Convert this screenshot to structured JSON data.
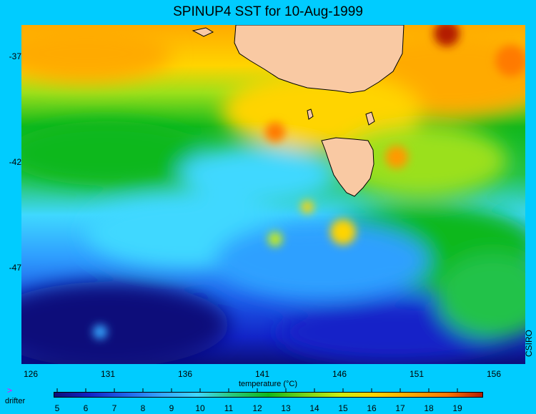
{
  "title": "SPINUP4 SST for 10-Aug-1999",
  "map": {
    "longitude_ticks": [
      "126",
      "131",
      "136",
      "141",
      "146",
      "151",
      "156"
    ],
    "latitude_ticks": [
      "-37",
      "-42",
      "-47"
    ],
    "credit": "CSIRO",
    "land_color": "#f9c9a3"
  },
  "colorbar": {
    "title": "temperature (°C)",
    "ticks": [
      "5",
      "6",
      "7",
      "8",
      "9",
      "10",
      "11",
      "12",
      "13",
      "14",
      "15",
      "16",
      "17",
      "18",
      "19"
    ],
    "gradient": [
      "#0b0f7a",
      "#1224c8",
      "#1f63ea",
      "#35a6ff",
      "#3fd8ff",
      "#27c97d",
      "#10b81c",
      "#73d41a",
      "#ccee10",
      "#ffd400",
      "#ffaa00",
      "#ff7a00",
      "#b41c00"
    ]
  },
  "legend": {
    "marker": ">",
    "label": "drifter"
  }
}
